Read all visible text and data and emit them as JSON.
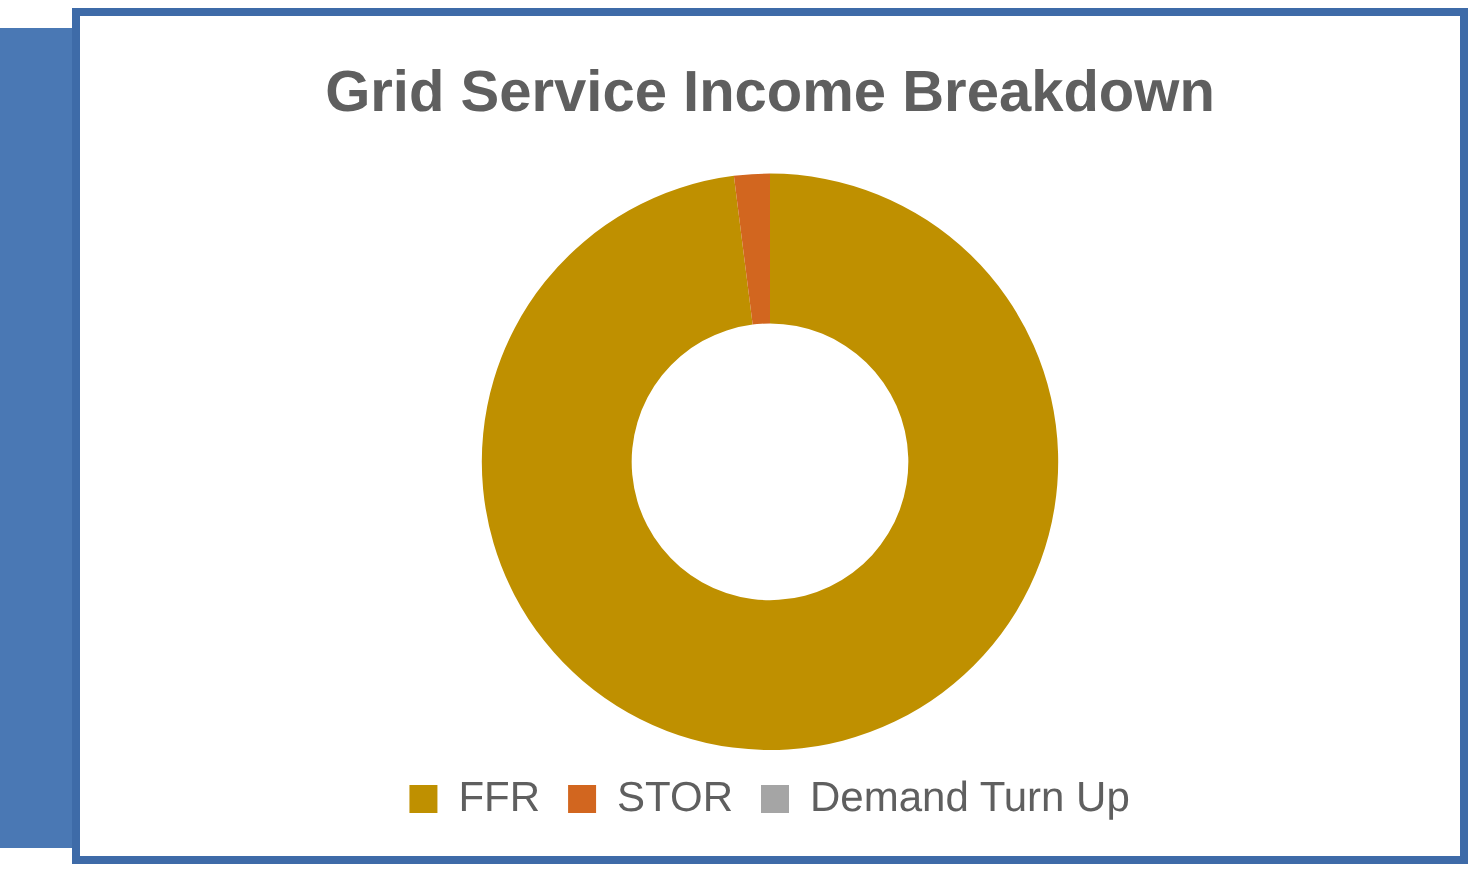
{
  "chart_data": {
    "type": "donut",
    "title": "Grid Service Income Breakdown",
    "categories": [
      "FFR",
      "STOR",
      "Demand Turn Up"
    ],
    "values": [
      98,
      2,
      0
    ],
    "colors": [
      "#bf9000",
      "#d2661f",
      "#a5a5a5"
    ],
    "legend": "bottom"
  }
}
